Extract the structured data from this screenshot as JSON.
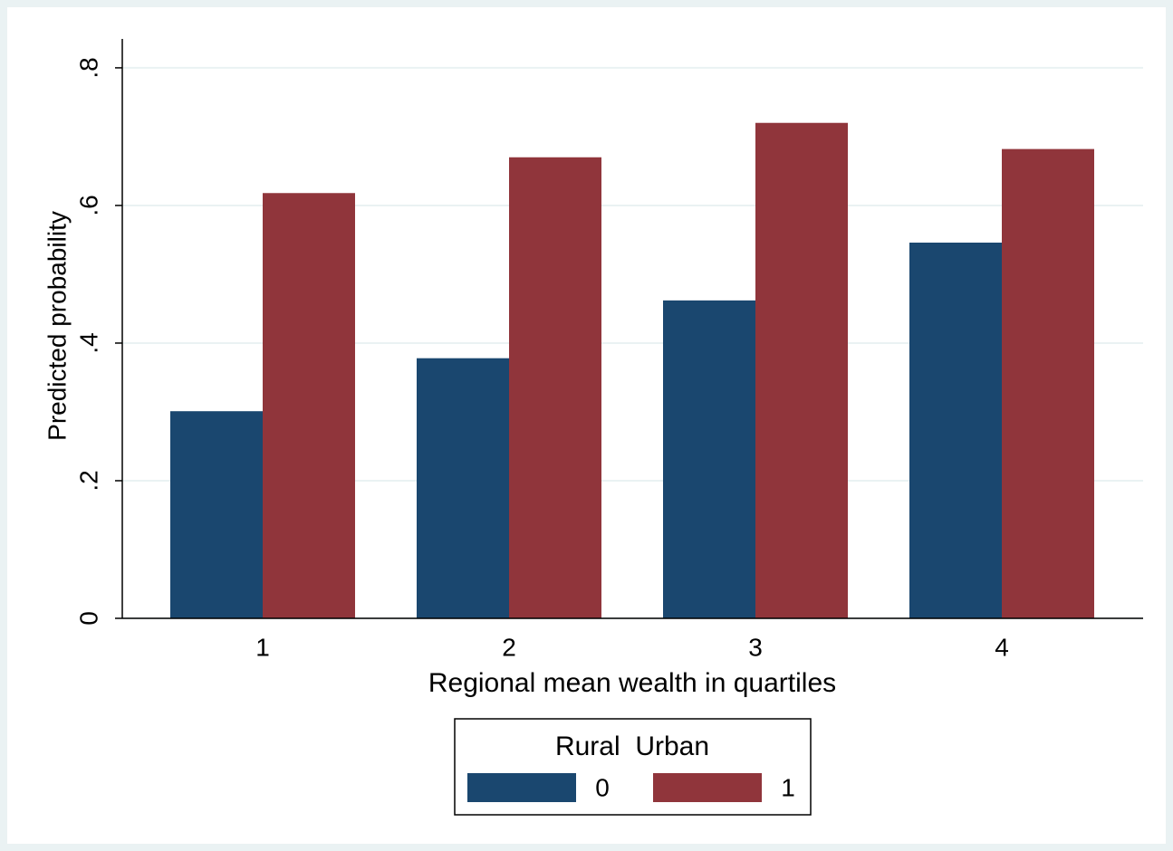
{
  "chart_data": {
    "type": "bar",
    "y_label": "Predicted probability",
    "x_label": "Regional mean wealth in quartiles",
    "categories": [
      "1",
      "2",
      "3",
      "4"
    ],
    "series": [
      {
        "name": "0",
        "color": "#1a476f",
        "values": [
          0.301,
          0.378,
          0.462,
          0.546
        ]
      },
      {
        "name": "1",
        "color": "#90353b",
        "values": [
          0.618,
          0.67,
          0.72,
          0.682
        ]
      }
    ],
    "ylim": [
      0,
      0.842
    ],
    "yticks": [
      0,
      {
        "value": 0.2,
        "label": ".2"
      },
      {
        "value": 0.4,
        "label": ".4"
      },
      {
        "value": 0.6,
        "label": ".6"
      },
      {
        "value": 0.8,
        "label": ".8"
      }
    ],
    "grid": true,
    "legend_title": "Rural  Urban",
    "legend_position": "bottom"
  }
}
